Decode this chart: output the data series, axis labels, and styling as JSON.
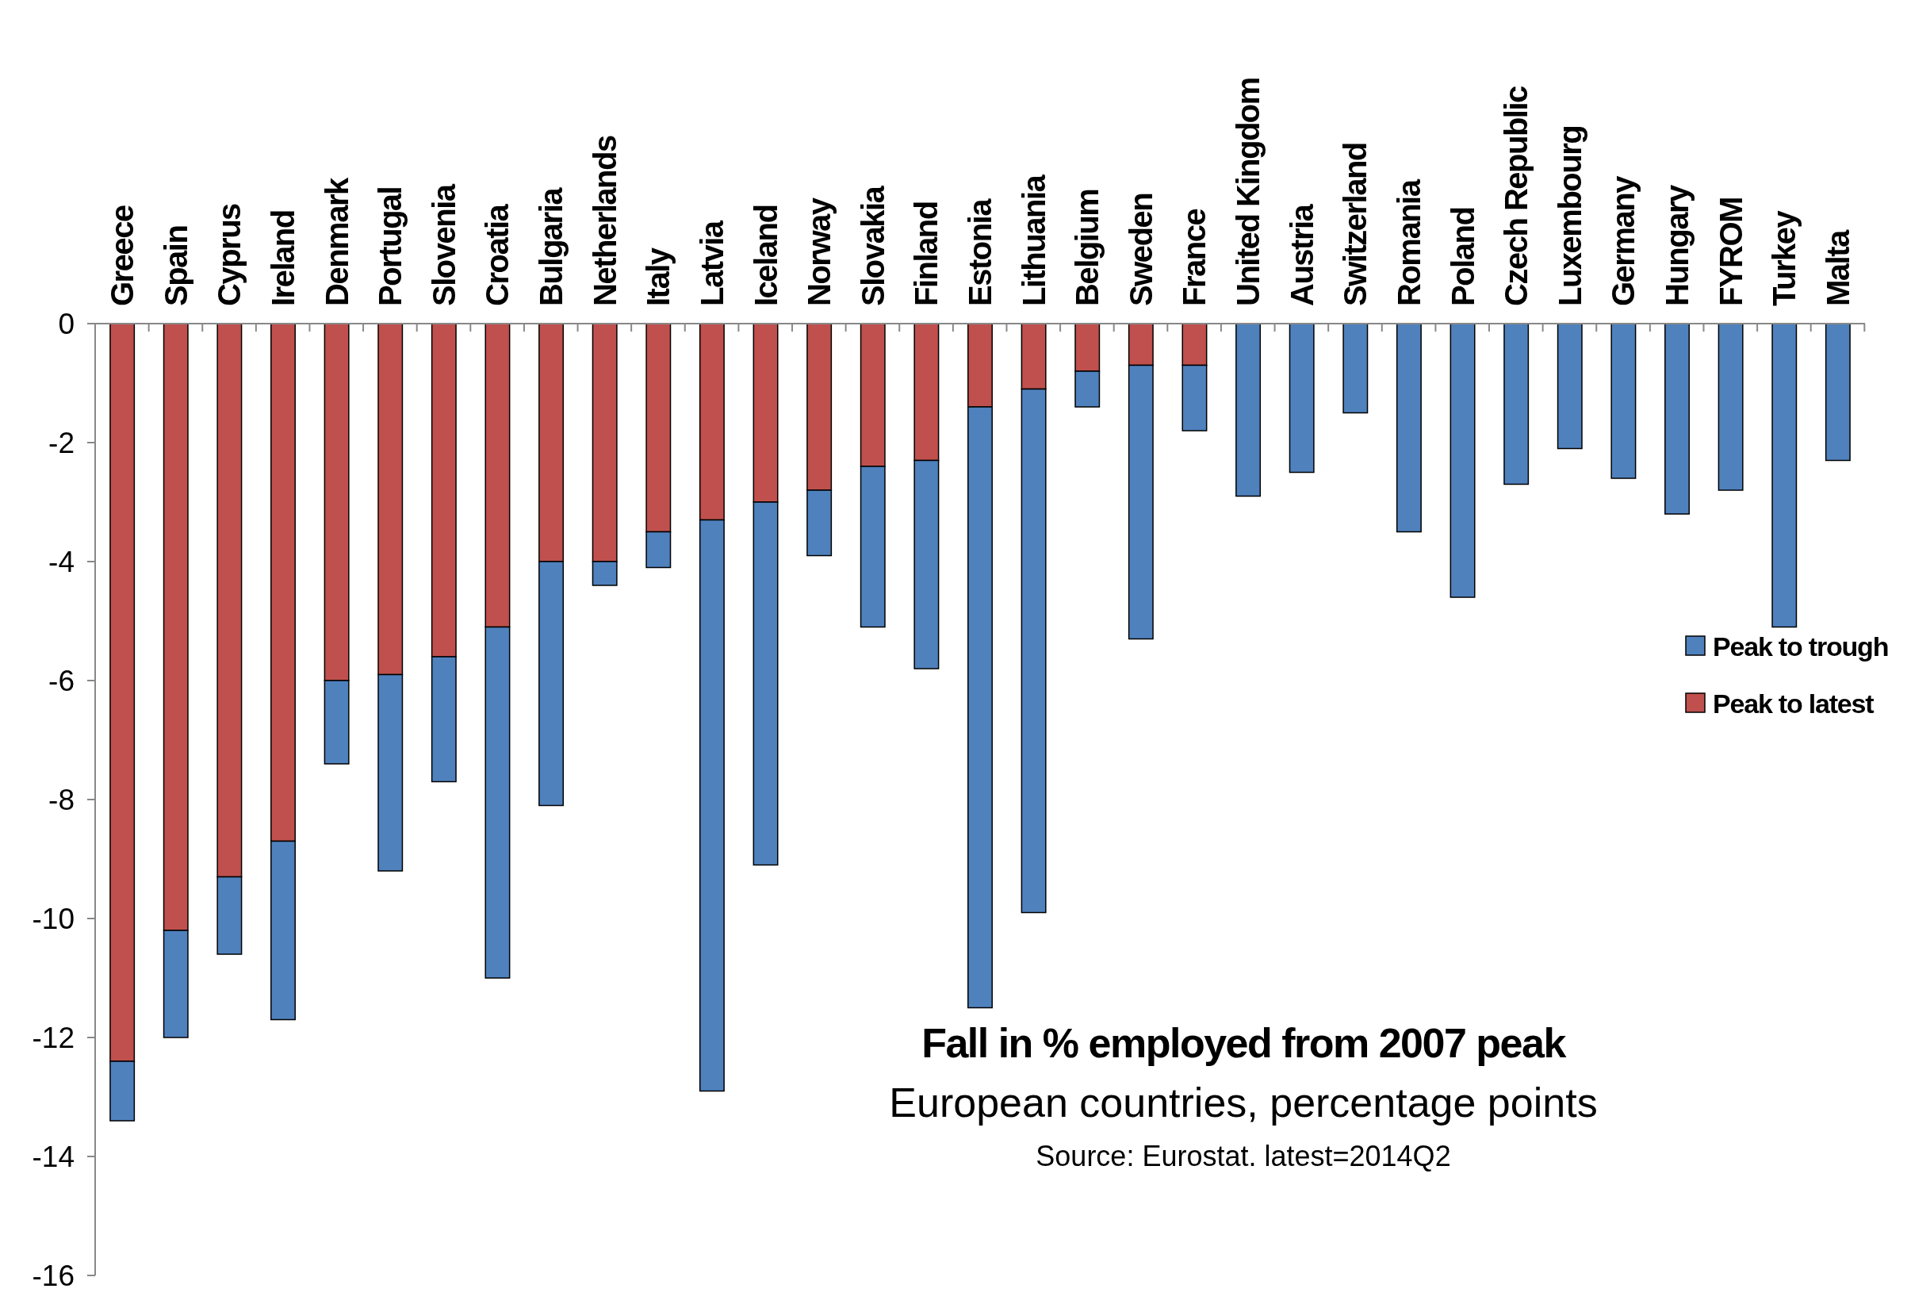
{
  "chart_data": {
    "type": "bar",
    "stacked": true,
    "title": "Fall in % employed from 2007 peak",
    "subtitle": "European countries, percentage points",
    "annotations": [
      "Source: Eurostat. latest=2014Q2"
    ],
    "categories": [
      "Greece",
      "Spain",
      "Cyprus",
      "Ireland",
      "Denmark",
      "Portugal",
      "Slovenia",
      "Croatia",
      "Bulgaria",
      "Netherlands",
      "Italy",
      "Latvia",
      "Iceland",
      "Norway",
      "Slovakia",
      "Finland",
      "Estonia",
      "Lithuania",
      "Belgium",
      "Sweden",
      "France",
      "United Kingdom",
      "Austria",
      "Switzerland",
      "Romania",
      "Poland",
      "Czech Republic",
      "Luxembourg",
      "Germany",
      "Hungary",
      "FYROM",
      "Turkey",
      "Malta"
    ],
    "series": [
      {
        "name": "Peak to latest",
        "color": "#c0504d",
        "values": [
          -12.4,
          -10.2,
          -9.3,
          -8.7,
          -6.0,
          -5.9,
          -5.6,
          -5.1,
          -4.0,
          -4.0,
          -3.5,
          -3.3,
          -3.0,
          -2.8,
          -2.4,
          -2.3,
          -1.4,
          -1.1,
          -0.8,
          -0.7,
          -0.7,
          0,
          0,
          0,
          0,
          0,
          0,
          0,
          0,
          0,
          0,
          0,
          0
        ]
      },
      {
        "name": "Peak to trough",
        "color": "#4f81bd",
        "values": [
          -1.0,
          -1.8,
          -1.3,
          -3.0,
          -1.4,
          -3.3,
          -2.1,
          -5.9,
          -4.1,
          -0.4,
          -0.6,
          -9.6,
          -6.1,
          -1.1,
          -2.7,
          -3.5,
          -10.1,
          -8.8,
          -0.6,
          -4.6,
          -1.1,
          -2.9,
          -2.5,
          -1.5,
          -3.5,
          -4.6,
          -2.7,
          -2.1,
          -2.6,
          -3.2,
          -2.8,
          -5.1,
          -2.3
        ]
      }
    ],
    "ylim": [
      -16,
      0
    ],
    "yticks": [
      -16,
      -14,
      -12,
      -10,
      -8,
      -6,
      -4,
      -2,
      0
    ],
    "grid": false,
    "legend": "right"
  }
}
